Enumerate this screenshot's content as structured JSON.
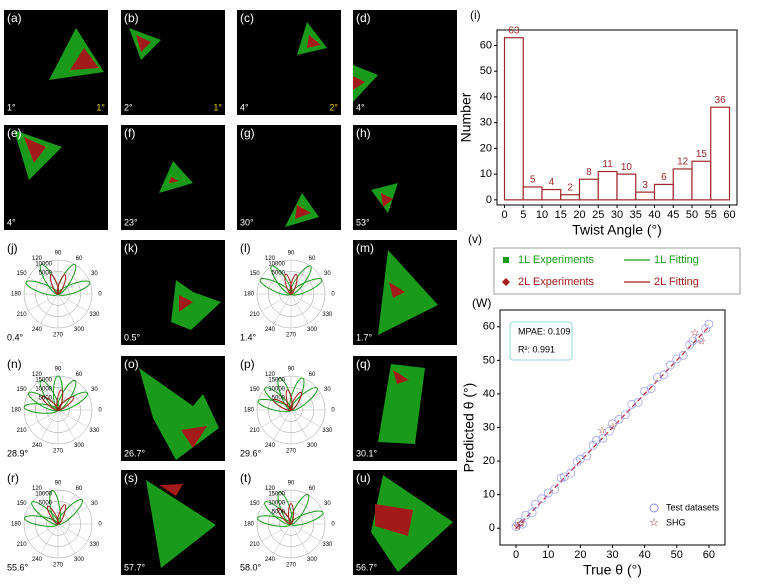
{
  "panels": [
    {
      "label": "(a)",
      "angle": "1°",
      "corner_label": "1°"
    },
    {
      "label": "(b)",
      "angle": "2°",
      "corner_label": "1°"
    },
    {
      "label": "(c)",
      "angle": "4°",
      "corner_label": "2°"
    },
    {
      "label": "(d)",
      "angle": "4°"
    },
    {
      "label": "(e)",
      "angle": "4°"
    },
    {
      "label": "(f)",
      "angle": "23°"
    },
    {
      "label": "(g)",
      "angle": "30°"
    },
    {
      "label": "(h)",
      "angle": "53°"
    },
    {
      "label": "(j)",
      "angle": "0.4°",
      "radial_labels": [
        "10000",
        "5000"
      ]
    },
    {
      "label": "(k)",
      "angle": "0.5°"
    },
    {
      "label": "(l)",
      "angle": "1.4°",
      "radial_labels": [
        "10000",
        "5000"
      ]
    },
    {
      "label": "(m)",
      "angle": "1.7°"
    },
    {
      "label": "(n)",
      "angle": "28.9°",
      "radial_labels": [
        "15000",
        "10000",
        "5000"
      ]
    },
    {
      "label": "(o)",
      "angle": "26.7°"
    },
    {
      "label": "(p)",
      "angle": "29.6°",
      "radial_labels": [
        "15000",
        "10000",
        "5000"
      ]
    },
    {
      "label": "(q)",
      "angle": "30.1°"
    },
    {
      "label": "(r)",
      "angle": "55.6°",
      "radial_labels": [
        "10000",
        "5000"
      ]
    },
    {
      "label": "(s)",
      "angle": "57.7°"
    },
    {
      "label": "(t)",
      "angle": "58.0°",
      "radial_labels": [
        "15000",
        "10000",
        "5000"
      ]
    },
    {
      "label": "(u)",
      "angle": "56.7°"
    }
  ],
  "polar_angle_labels": [
    "0",
    "30",
    "60",
    "90",
    "120",
    "150",
    "180",
    "210",
    "240",
    "270",
    "300",
    "330"
  ],
  "legend_panel": {
    "label": "(v)",
    "entries": [
      {
        "name": "1L Experiments",
        "color": "#1a9a1a"
      },
      {
        "name": "1L Fitting",
        "color": "#1a9a1a"
      },
      {
        "name": "2L Experiments",
        "color": "#a31a1a"
      },
      {
        "name": "2L Fitting",
        "color": "#a31a1a"
      }
    ]
  },
  "chart_data": [
    {
      "type": "histogram",
      "label": "(i)",
      "xlabel": "Twist Angle (°)",
      "ylabel": "Number",
      "bins": [
        0,
        5,
        10,
        15,
        20,
        25,
        30,
        35,
        40,
        45,
        50,
        55,
        60
      ],
      "values": [
        63,
        5,
        4,
        2,
        8,
        11,
        10,
        3,
        6,
        12,
        15,
        36
      ],
      "color": "#a0282a",
      "xlim": [
        -2,
        62
      ],
      "ylim": [
        -2,
        66
      ],
      "xticks": [
        0,
        5,
        10,
        15,
        20,
        25,
        30,
        35,
        40,
        45,
        50,
        55,
        60
      ],
      "yticks": [
        0,
        10,
        20,
        30,
        40,
        50,
        60
      ]
    },
    {
      "type": "scatter",
      "label": "(W)",
      "xlabel": "True θ (°)",
      "ylabel": "Predicted θ (°)",
      "annotations": [
        "MPAE: 0.109",
        "R²: 0.991"
      ],
      "xlim": [
        -5,
        65
      ],
      "ylim": [
        -5,
        65
      ],
      "xticks": [
        0,
        10,
        20,
        30,
        40,
        50,
        60
      ],
      "yticks": [
        0,
        10,
        20,
        30,
        40,
        50,
        60
      ],
      "fit_line": {
        "color": "#c0202a",
        "x": [
          0,
          60
        ],
        "values": [
          0,
          60
        ]
      },
      "series": [
        {
          "name": "Test datasets",
          "color": "#8c8cf0",
          "x": [
            0,
            1,
            2,
            3,
            5,
            6,
            8,
            10,
            12,
            14,
            15,
            17,
            19,
            20,
            22,
            24,
            25,
            27,
            29,
            30,
            32,
            34,
            36,
            38,
            40,
            42,
            44,
            46,
            48,
            50,
            52,
            54,
            55,
            57,
            59,
            60
          ],
          "values": [
            0.5,
            1.8,
            1.2,
            3.9,
            4.6,
            7.1,
            8.8,
            10.5,
            11.6,
            14.9,
            15.3,
            16.4,
            19.8,
            20.6,
            21.5,
            24.7,
            26.2,
            26.8,
            28.9,
            31.1,
            32.4,
            33.8,
            36.9,
            37.5,
            40.8,
            41.6,
            44.9,
            45.7,
            48.6,
            50.4,
            51.5,
            54.6,
            55.8,
            56.6,
            59.4,
            60.8
          ]
        },
        {
          "name": "SHG",
          "color": "#a31a1a",
          "x": [
            0.4,
            0.5,
            1.4,
            1.7,
            26.7,
            30.1,
            55.6,
            57.7
          ],
          "values": [
            0.5,
            0.3,
            1.2,
            1.5,
            29,
            30,
            58,
            55.5
          ]
        }
      ]
    }
  ]
}
